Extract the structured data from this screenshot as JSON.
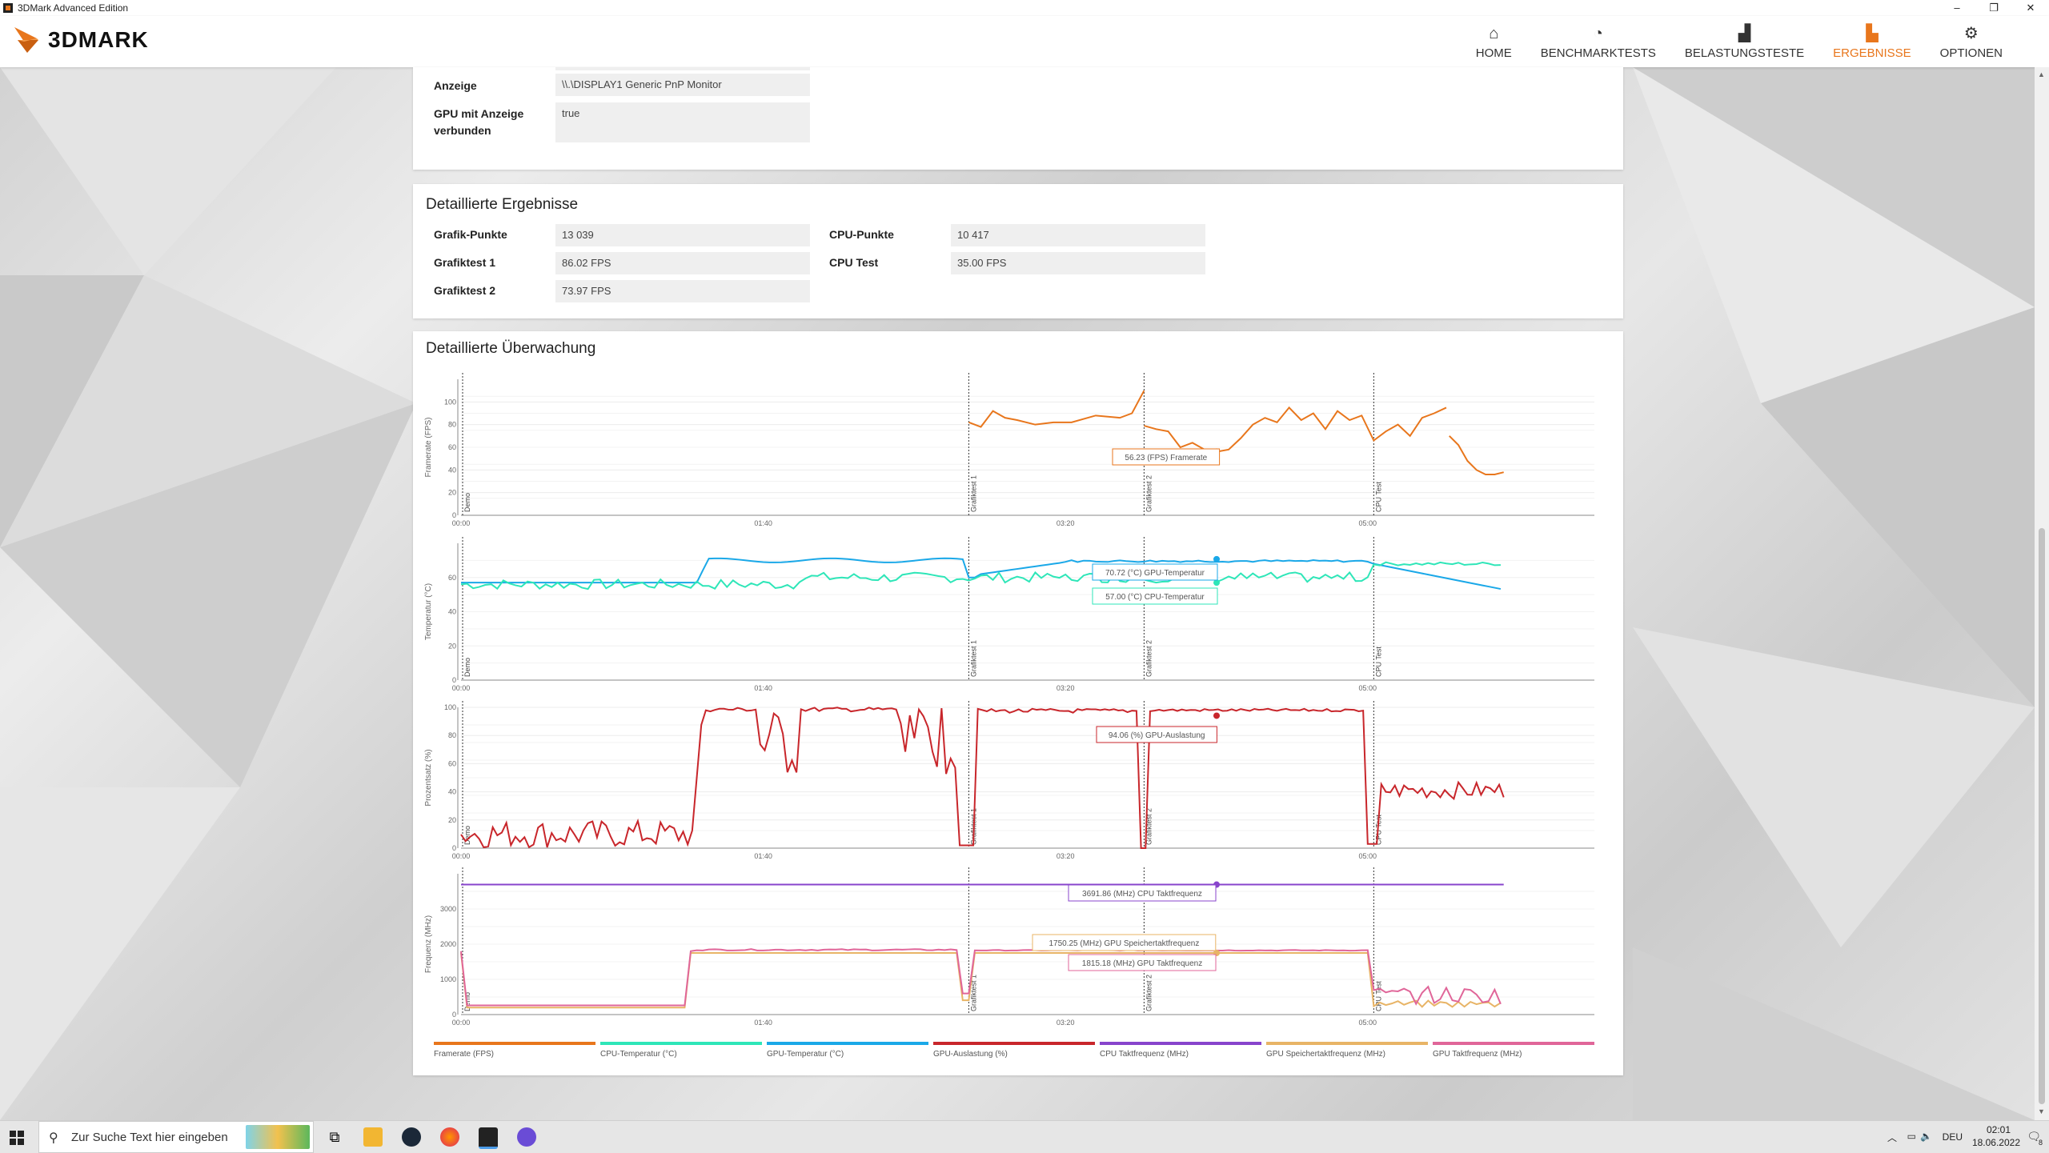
{
  "window": {
    "title": "3DMark Advanced Edition",
    "controls": [
      "–",
      "❐",
      "✕"
    ]
  },
  "header": {
    "logo_text": "3DMARK",
    "nav": [
      {
        "label": "HOME",
        "icon": "home-icon"
      },
      {
        "label": "BENCHMARKTESTS",
        "icon": "gauge-icon"
      },
      {
        "label": "BELASTUNGSTESTE",
        "icon": "bar-chart-icon"
      },
      {
        "label": "ERGEBNISSE",
        "icon": "results-icon",
        "active": true
      },
      {
        "label": "OPTIONEN",
        "icon": "gear-icon"
      }
    ],
    "accent": "#e8761c"
  },
  "system_info": {
    "anzeige_label": "Anzeige",
    "anzeige_value": "\\\\.\\DISPLAY1 Generic PnP Monitor",
    "gpu_label_1": "GPU mit Anzeige",
    "gpu_label_2": "verbunden",
    "gpu_value": "true"
  },
  "results": {
    "title": "Detaillierte Ergebnisse",
    "left": [
      {
        "label": "Grafik-Punkte",
        "value": "13 039"
      },
      {
        "label": "Grafiktest 1",
        "value": "86.02 FPS"
      },
      {
        "label": "Grafiktest 2",
        "value": "73.97 FPS"
      }
    ],
    "right": [
      {
        "label": "CPU-Punkte",
        "value": "10 417"
      },
      {
        "label": "CPU Test",
        "value": "35.00 FPS"
      }
    ]
  },
  "monitoring": {
    "title": "Detaillierte Überwachung",
    "markers": [
      "Demo",
      "Grafiktest 1",
      "Grafiktest 2",
      "CPU Test"
    ],
    "x_ticks": [
      "00:00",
      "01:40",
      "03:20",
      "05:00"
    ],
    "tooltips": {
      "fps": "56.23 (FPS) Framerate",
      "gpu_temp": "70.72 (°C) GPU-Temperatur",
      "cpu_temp": "57.00 (°C) CPU-Temperatur",
      "gpu_load": "94.06 (%) GPU-Auslastung",
      "cpu_clock": "3691.86 (MHz) CPU Taktfrequenz",
      "gpu_mem_clock": "1750.25 (MHz) GPU Speichertaktfrequenz",
      "gpu_clock": "1815.18 (MHz) GPU Taktfrequenz"
    },
    "legend": [
      {
        "label": "Framerate (FPS)",
        "color": "#e8761c"
      },
      {
        "label": "CPU-Temperatur (°C)",
        "color": "#2ee6b8"
      },
      {
        "label": "GPU-Temperatur (°C)",
        "color": "#1aa8e8"
      },
      {
        "label": "GPU-Auslastung (%)",
        "color": "#c8262b"
      },
      {
        "label": "CPU Taktfrequenz (MHz)",
        "color": "#8844cc"
      },
      {
        "label": "GPU Speichertaktfrequenz (MHz)",
        "color": "#e8b466"
      },
      {
        "label": "GPU Taktfrequenz (MHz)",
        "color": "#e06699"
      }
    ]
  },
  "chart_data": [
    {
      "type": "line",
      "ylabel": "Framerate (FPS)",
      "ylim": [
        0,
        120
      ],
      "yticks": [
        0,
        20,
        40,
        60,
        80,
        100
      ],
      "xlim": [
        0,
        375
      ],
      "x_ticks": [
        "00:00",
        "01:40",
        "03:20",
        "05:00"
      ],
      "series": [
        {
          "name": "Framerate (FPS)",
          "color": "#e8761c",
          "segments": [
            [
              [
                0,
                0
              ],
              [
                0,
                0
              ]
            ],
            [
              [
                168,
                82
              ],
              [
                172,
                78
              ],
              [
                176,
                92
              ],
              [
                180,
                86
              ],
              [
                184,
                84
              ],
              [
                190,
                80
              ],
              [
                196,
                82
              ],
              [
                202,
                82
              ],
              [
                210,
                88
              ],
              [
                218,
                86
              ],
              [
                222,
                90
              ],
              [
                226,
                110
              ]
            ],
            [
              [
                226,
                79
              ],
              [
                230,
                76
              ],
              [
                234,
                74
              ],
              [
                238,
                60
              ],
              [
                242,
                64
              ],
              [
                246,
                58
              ],
              [
                250,
                56
              ],
              [
                254,
                58
              ],
              [
                258,
                68
              ],
              [
                262,
                80
              ],
              [
                266,
                86
              ],
              [
                270,
                82
              ],
              [
                274,
                95
              ],
              [
                278,
                84
              ],
              [
                282,
                90
              ],
              [
                286,
                76
              ],
              [
                290,
                92
              ],
              [
                294,
                84
              ],
              [
                298,
                88
              ],
              [
                302,
                66
              ],
              [
                306,
                74
              ],
              [
                310,
                80
              ],
              [
                314,
                70
              ],
              [
                318,
                86
              ],
              [
                322,
                90
              ],
              [
                326,
                95
              ]
            ],
            [
              [
                327,
                70
              ],
              [
                330,
                62
              ],
              [
                333,
                48
              ],
              [
                336,
                40
              ],
              [
                339,
                36
              ],
              [
                342,
                36
              ],
              [
                345,
                38
              ]
            ]
          ]
        }
      ]
    },
    {
      "type": "line",
      "ylabel": "Temperatur (°C)",
      "ylim": [
        0,
        80
      ],
      "yticks": [
        0,
        20,
        40,
        60
      ],
      "series": [
        {
          "name": "GPU-Temperatur (°C)",
          "color": "#1aa8e8"
        },
        {
          "name": "CPU-Temperatur (°C)",
          "color": "#2ee6b8"
        }
      ]
    },
    {
      "type": "line",
      "ylabel": "Prozentsatz (%)",
      "ylim": [
        0,
        100
      ],
      "yticks": [
        0,
        20,
        40,
        60,
        80,
        100
      ],
      "series": [
        {
          "name": "GPU-Auslastung (%)",
          "color": "#c8262b"
        }
      ]
    },
    {
      "type": "line",
      "ylabel": "Frequenz (MHz)",
      "ylim": [
        0,
        4000
      ],
      "yticks": [
        0,
        1000,
        2000,
        3000
      ],
      "series": [
        {
          "name": "CPU Taktfrequenz (MHz)",
          "color": "#8844cc"
        },
        {
          "name": "GPU Speichertaktfrequenz (MHz)",
          "color": "#e8b466"
        },
        {
          "name": "GPU Taktfrequenz (MHz)",
          "color": "#e06699"
        }
      ]
    }
  ],
  "taskbar": {
    "search_placeholder": "Zur Suche Text hier eingeben",
    "lang": "DEU",
    "time": "02:01",
    "date": "18.06.2022",
    "notification_count": "8"
  }
}
